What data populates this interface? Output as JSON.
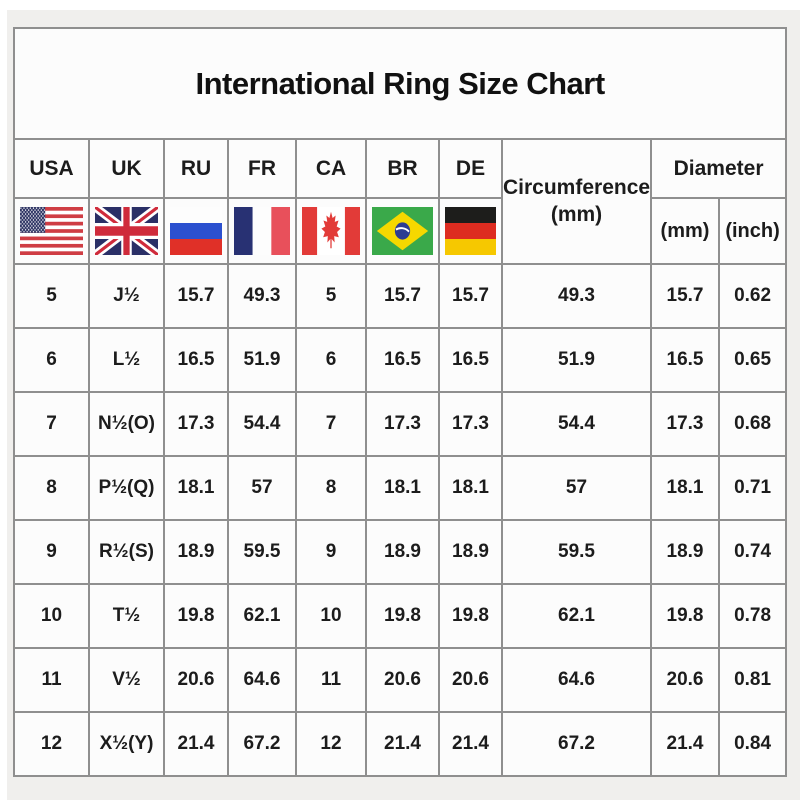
{
  "title": "International Ring Size Chart",
  "header": {
    "countries": [
      {
        "code": "USA",
        "flag": "usa"
      },
      {
        "code": "UK",
        "flag": "uk"
      },
      {
        "code": "RU",
        "flag": "ru"
      },
      {
        "code": "FR",
        "flag": "fr"
      },
      {
        "code": "CA",
        "flag": "ca"
      },
      {
        "code": "BR",
        "flag": "br"
      },
      {
        "code": "DE",
        "flag": "de"
      }
    ],
    "circumference": {
      "label": "Circumference",
      "unit": "(mm)"
    },
    "diameter": {
      "label": "Diameter",
      "units": [
        "(mm)",
        "(inch)"
      ]
    }
  },
  "colors": {
    "page_bg": "#f0efed",
    "cell_bg": "#fcfcfc",
    "border": "#8f8f8f",
    "text": "#1c1c1c",
    "usa_red": "#cf3d44",
    "usa_blue": "#2e3464",
    "uk_blue": "#2a2f66",
    "uk_red": "#cf2b3b",
    "ru_blue": "#2b50cf",
    "ru_red": "#e03028",
    "fr_blue": "#283173",
    "fr_red": "#e8505b",
    "ca_red": "#e23b38",
    "br_green": "#3aa94a",
    "br_yellow": "#f5d800",
    "br_blue": "#2c3c92",
    "de_black": "#1d1d1b",
    "de_red": "#dd2c20",
    "de_gold": "#f6c800"
  },
  "chart_data": {
    "type": "table",
    "title": "International Ring Size Chart",
    "columns": [
      "USA",
      "UK",
      "RU",
      "FR",
      "CA",
      "BR",
      "DE",
      "Circumference (mm)",
      "Diameter (mm)",
      "Diameter (inch)"
    ],
    "rows": [
      [
        "5",
        "J½",
        "15.7",
        "49.3",
        "5",
        "15.7",
        "15.7",
        "49.3",
        "15.7",
        "0.62"
      ],
      [
        "6",
        "L½",
        "16.5",
        "51.9",
        "6",
        "16.5",
        "16.5",
        "51.9",
        "16.5",
        "0.65"
      ],
      [
        "7",
        "N½(O)",
        "17.3",
        "54.4",
        "7",
        "17.3",
        "17.3",
        "54.4",
        "17.3",
        "0.68"
      ],
      [
        "8",
        "P½(Q)",
        "18.1",
        "57",
        "8",
        "18.1",
        "18.1",
        "57",
        "18.1",
        "0.71"
      ],
      [
        "9",
        "R½(S)",
        "18.9",
        "59.5",
        "9",
        "18.9",
        "18.9",
        "59.5",
        "18.9",
        "0.74"
      ],
      [
        "10",
        "T½",
        "19.8",
        "62.1",
        "10",
        "19.8",
        "19.8",
        "62.1",
        "19.8",
        "0.78"
      ],
      [
        "11",
        "V½",
        "20.6",
        "64.6",
        "11",
        "20.6",
        "20.6",
        "64.6",
        "20.6",
        "0.81"
      ],
      [
        "12",
        "X½(Y)",
        "21.4",
        "67.2",
        "12",
        "21.4",
        "21.4",
        "67.2",
        "21.4",
        "0.84"
      ]
    ]
  }
}
